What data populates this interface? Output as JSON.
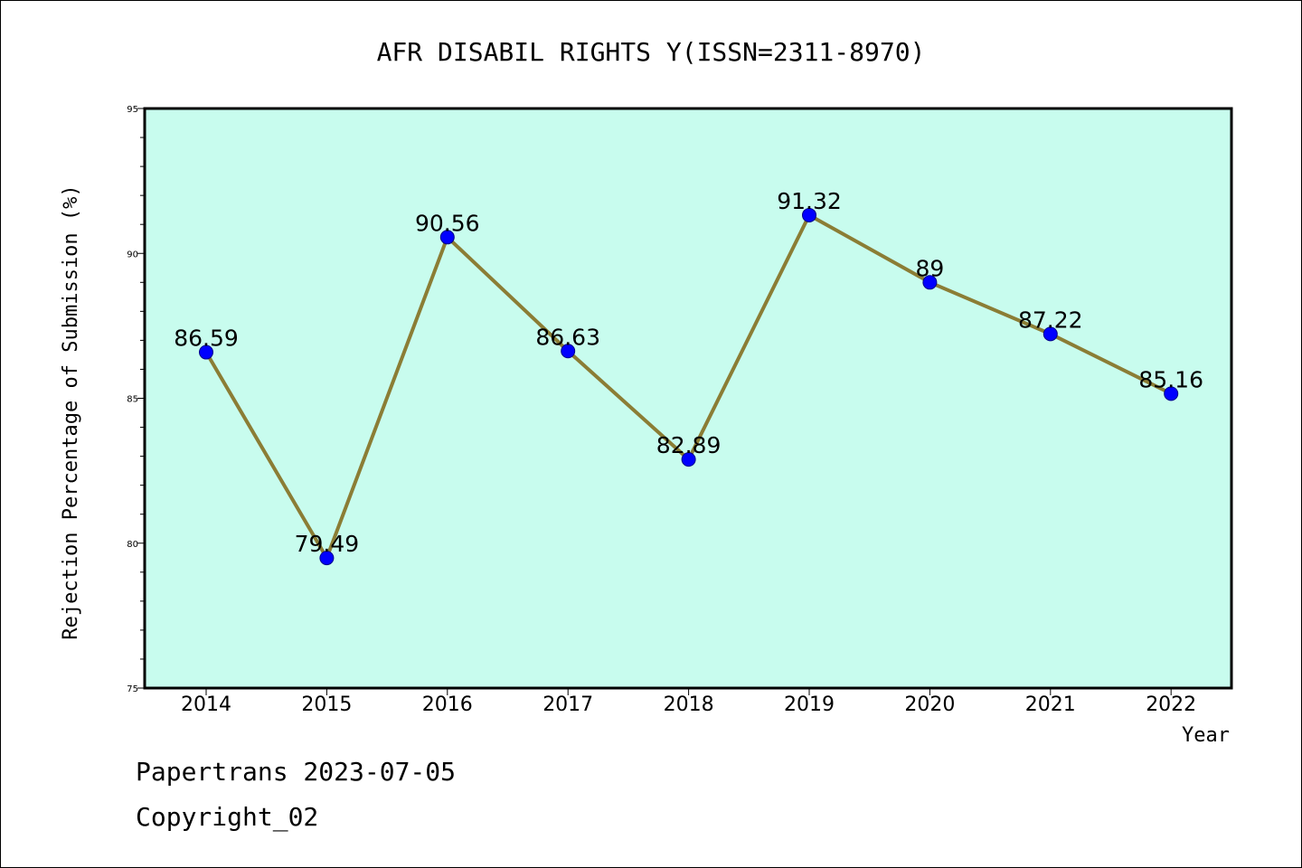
{
  "chart_data": {
    "type": "line",
    "title": "AFR DISABIL RIGHTS Y(ISSN=2311-8970)",
    "xlabel": "Year",
    "ylabel": "Rejection Percentage of Submission (%)",
    "categories": [
      "2014",
      "2015",
      "2016",
      "2017",
      "2018",
      "2019",
      "2020",
      "2021",
      "2022"
    ],
    "series": [
      {
        "values": [
          86.59,
          79.49,
          90.56,
          86.63,
          82.89,
          91.32,
          89,
          87.22,
          85.16
        ],
        "data_labels": [
          "86.59",
          "79.49",
          "90.56",
          "86.63",
          "82.89",
          "91.32",
          "89",
          "87.22",
          "85.16"
        ]
      }
    ],
    "ylim": [
      75,
      95
    ],
    "yticks": [
      75,
      80,
      85,
      90,
      95
    ],
    "ytick_labels": [
      "75",
      "80",
      "85",
      "90",
      "95"
    ],
    "grid": false,
    "colors": {
      "plot_background": "#c8fcee",
      "line": "#8b7d35",
      "marker": "#0000ff"
    }
  },
  "footer": {
    "line1": "Papertrans 2023-07-05",
    "line2": "Copyright_02"
  }
}
